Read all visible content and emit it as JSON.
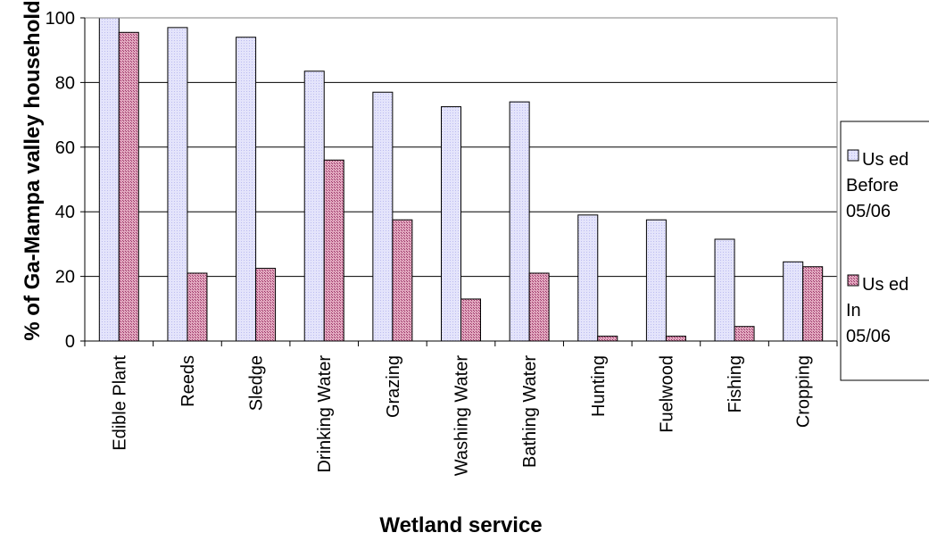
{
  "chart_data": {
    "type": "bar",
    "title": "",
    "xlabel": "Wetland service",
    "ylabel": "% of Ga-Mampa valley household",
    "categories": [
      "Edible Plant",
      "Reeds",
      "Sledge",
      "Drinking Water",
      "Grazing",
      "Washing Water",
      "Bathing Water",
      "Hunting",
      "Fuelwood",
      "Fishing",
      "Cropping"
    ],
    "series": [
      {
        "name": "Used Before 05/06",
        "legend_lines": [
          "Us ed",
          "Before",
          "05/06"
        ],
        "color": "#ccccff",
        "hatch": "none",
        "values": [
          100,
          97,
          94,
          83.5,
          77,
          72.5,
          74,
          39,
          37.5,
          31.5,
          24.5
        ]
      },
      {
        "name": "Used In 05/06",
        "legend_lines": [
          "Us ed",
          "In",
          "05/06"
        ],
        "color": "#993366",
        "hatch": "crosshatch",
        "values": [
          95.5,
          21,
          22.5,
          56,
          37.5,
          13,
          21,
          1.5,
          1.5,
          4.5,
          23
        ]
      }
    ],
    "ylim": [
      0,
      100
    ],
    "yticks": [
      0,
      20,
      40,
      60,
      80,
      100
    ],
    "grid": true,
    "legend_position": "right"
  }
}
